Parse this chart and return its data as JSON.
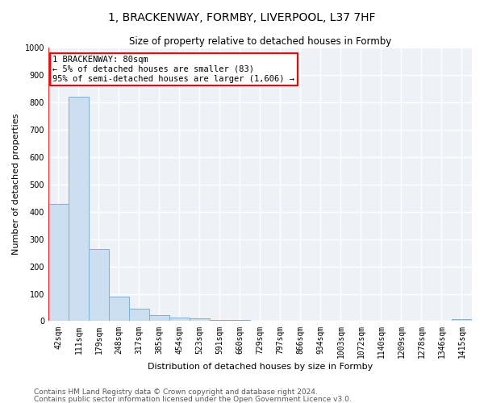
{
  "title": "1, BRACKENWAY, FORMBY, LIVERPOOL, L37 7HF",
  "subtitle": "Size of property relative to detached houses in Formby",
  "xlabel": "Distribution of detached houses by size in Formby",
  "ylabel": "Number of detached properties",
  "bar_labels": [
    "42sqm",
    "111sqm",
    "179sqm",
    "248sqm",
    "317sqm",
    "385sqm",
    "454sqm",
    "523sqm",
    "591sqm",
    "660sqm",
    "729sqm",
    "797sqm",
    "866sqm",
    "934sqm",
    "1003sqm",
    "1072sqm",
    "1140sqm",
    "1209sqm",
    "1278sqm",
    "1346sqm",
    "1415sqm"
  ],
  "bar_values": [
    430,
    820,
    265,
    90,
    45,
    22,
    12,
    10,
    5,
    3,
    2,
    1,
    1,
    1,
    1,
    1,
    0,
    0,
    0,
    0,
    8
  ],
  "bar_color": "#ccdff0",
  "bar_edge_color": "#7db0d4",
  "annotation_text": "1 BRACKENWAY: 80sqm\n← 5% of detached houses are smaller (83)\n95% of semi-detached houses are larger (1,606) →",
  "annotation_box_color": "white",
  "annotation_box_edge": "red",
  "ylim": [
    0,
    1000
  ],
  "yticks": [
    0,
    100,
    200,
    300,
    400,
    500,
    600,
    700,
    800,
    900,
    1000
  ],
  "marker_line_color": "red",
  "footer1": "Contains HM Land Registry data © Crown copyright and database right 2024.",
  "footer2": "Contains public sector information licensed under the Open Government Licence v3.0.",
  "background_color": "#eef2f7",
  "grid_color": "white",
  "title_fontsize": 10,
  "subtitle_fontsize": 8.5,
  "axis_label_fontsize": 8,
  "tick_fontsize": 7,
  "footer_fontsize": 6.5,
  "annotation_fontsize": 7.5
}
